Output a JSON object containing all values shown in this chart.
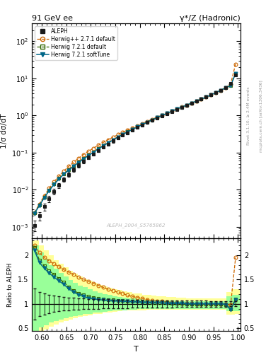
{
  "title_left": "91 GeV ee",
  "title_right": "γ*/Z (Hadronic)",
  "xlabel": "T",
  "ylabel_main": "1/σ dσ/dT",
  "ylabel_ratio": "Ratio to ALEPH",
  "watermark": "ALEPH_2004_S5765862",
  "right_label": "Rivet 3.1.10, ≥ 2.4M events",
  "right_label2": "mcplots.cern.ch [arXiv:1306.3436]",
  "T_vals": [
    0.585,
    0.595,
    0.605,
    0.615,
    0.625,
    0.635,
    0.645,
    0.655,
    0.665,
    0.675,
    0.685,
    0.695,
    0.705,
    0.715,
    0.725,
    0.735,
    0.745,
    0.755,
    0.765,
    0.775,
    0.785,
    0.795,
    0.805,
    0.815,
    0.825,
    0.835,
    0.845,
    0.855,
    0.865,
    0.875,
    0.885,
    0.895,
    0.905,
    0.915,
    0.925,
    0.935,
    0.945,
    0.955,
    0.965,
    0.975,
    0.985,
    0.995
  ],
  "aleph_y": [
    0.0011,
    0.002,
    0.0035,
    0.0058,
    0.009,
    0.0132,
    0.0188,
    0.0258,
    0.0345,
    0.0455,
    0.0585,
    0.074,
    0.092,
    0.114,
    0.14,
    0.17,
    0.205,
    0.245,
    0.292,
    0.344,
    0.404,
    0.473,
    0.551,
    0.64,
    0.74,
    0.853,
    0.981,
    1.124,
    1.284,
    1.462,
    1.66,
    1.88,
    2.13,
    2.42,
    2.75,
    3.13,
    3.58,
    4.12,
    4.78,
    5.6,
    7.2,
    12.5
  ],
  "aleph_yerr": [
    0.00035,
    0.0005,
    0.00075,
    0.0011,
    0.0015,
    0.002,
    0.0026,
    0.0033,
    0.0042,
    0.0052,
    0.0063,
    0.0077,
    0.0093,
    0.0112,
    0.0133,
    0.0157,
    0.0184,
    0.0214,
    0.0248,
    0.0285,
    0.0327,
    0.0374,
    0.0425,
    0.0481,
    0.0543,
    0.0613,
    0.0693,
    0.0781,
    0.0879,
    0.0988,
    0.111,
    0.124,
    0.139,
    0.156,
    0.174,
    0.196,
    0.22,
    0.248,
    0.28,
    0.318,
    0.382,
    0.6
  ],
  "herwig_pp_ratio": [
    2.2,
    2.05,
    1.95,
    1.88,
    1.82,
    1.76,
    1.7,
    1.65,
    1.6,
    1.55,
    1.5,
    1.46,
    1.42,
    1.38,
    1.34,
    1.3,
    1.27,
    1.24,
    1.21,
    1.18,
    1.15,
    1.13,
    1.11,
    1.09,
    1.07,
    1.06,
    1.05,
    1.04,
    1.03,
    1.02,
    1.015,
    1.01,
    1.005,
    1.0,
    1.0,
    1.0,
    1.0,
    1.0,
    1.0,
    1.0,
    0.98,
    1.95
  ],
  "herwig721_ratio": [
    2.15,
    1.9,
    1.78,
    1.68,
    1.6,
    1.52,
    1.44,
    1.35,
    1.27,
    1.22,
    1.18,
    1.15,
    1.13,
    1.11,
    1.1,
    1.09,
    1.08,
    1.07,
    1.07,
    1.06,
    1.05,
    1.05,
    1.04,
    1.04,
    1.03,
    1.03,
    1.02,
    1.02,
    1.01,
    1.01,
    1.01,
    1.0,
    1.0,
    1.0,
    1.0,
    1.0,
    1.0,
    1.0,
    1.0,
    0.99,
    0.9,
    1.1
  ],
  "herwig721soft_ratio": [
    2.1,
    1.85,
    1.73,
    1.63,
    1.55,
    1.47,
    1.4,
    1.31,
    1.24,
    1.19,
    1.15,
    1.12,
    1.1,
    1.09,
    1.08,
    1.07,
    1.06,
    1.06,
    1.05,
    1.05,
    1.04,
    1.04,
    1.03,
    1.03,
    1.02,
    1.02,
    1.02,
    1.01,
    1.01,
    1.01,
    1.01,
    1.0,
    1.0,
    1.0,
    1.0,
    1.0,
    1.0,
    1.0,
    1.0,
    0.99,
    0.88,
    1.08
  ],
  "yellow_lo": [
    0.36,
    0.42,
    0.48,
    0.54,
    0.58,
    0.62,
    0.65,
    0.68,
    0.71,
    0.73,
    0.75,
    0.77,
    0.79,
    0.8,
    0.82,
    0.83,
    0.84,
    0.85,
    0.86,
    0.86,
    0.87,
    0.87,
    0.87,
    0.88,
    0.88,
    0.88,
    0.88,
    0.88,
    0.88,
    0.88,
    0.88,
    0.88,
    0.88,
    0.88,
    0.88,
    0.88,
    0.88,
    0.88,
    0.88,
    0.88,
    0.78,
    0.8
  ],
  "yellow_hi": [
    2.3,
    2.2,
    2.1,
    2.0,
    1.9,
    1.82,
    1.75,
    1.68,
    1.62,
    1.56,
    1.51,
    1.47,
    1.43,
    1.39,
    1.36,
    1.33,
    1.3,
    1.28,
    1.26,
    1.24,
    1.22,
    1.21,
    1.19,
    1.18,
    1.17,
    1.16,
    1.15,
    1.14,
    1.14,
    1.13,
    1.13,
    1.12,
    1.12,
    1.12,
    1.12,
    1.12,
    1.12,
    1.12,
    1.12,
    1.12,
    1.25,
    1.3
  ],
  "green_lo": [
    0.45,
    0.52,
    0.57,
    0.62,
    0.65,
    0.68,
    0.71,
    0.73,
    0.75,
    0.77,
    0.79,
    0.8,
    0.82,
    0.83,
    0.84,
    0.85,
    0.86,
    0.87,
    0.87,
    0.88,
    0.88,
    0.89,
    0.89,
    0.89,
    0.89,
    0.9,
    0.9,
    0.9,
    0.9,
    0.9,
    0.9,
    0.9,
    0.9,
    0.9,
    0.9,
    0.9,
    0.9,
    0.9,
    0.9,
    0.9,
    0.85,
    0.85
  ],
  "green_hi": [
    2.2,
    2.05,
    1.92,
    1.8,
    1.72,
    1.63,
    1.56,
    1.49,
    1.43,
    1.38,
    1.34,
    1.3,
    1.26,
    1.23,
    1.2,
    1.18,
    1.16,
    1.14,
    1.13,
    1.12,
    1.11,
    1.1,
    1.09,
    1.09,
    1.08,
    1.08,
    1.07,
    1.07,
    1.07,
    1.06,
    1.06,
    1.06,
    1.06,
    1.06,
    1.06,
    1.06,
    1.06,
    1.06,
    1.06,
    1.06,
    1.15,
    1.18
  ],
  "aleph_color": "#1a1a1a",
  "herwig_pp_color": "#cc6600",
  "herwig721_color": "#336600",
  "herwig721soft_color": "#006688",
  "xlim": [
    0.58,
    1.005
  ],
  "ylim_main": [
    0.0005,
    300.0
  ],
  "ylim_ratio": [
    0.44,
    2.35
  ],
  "ratio_yticks": [
    0.5,
    1.0,
    1.5,
    2.0
  ],
  "ratio_yticklabels": [
    "0.5",
    "1",
    "1.5",
    "2"
  ]
}
